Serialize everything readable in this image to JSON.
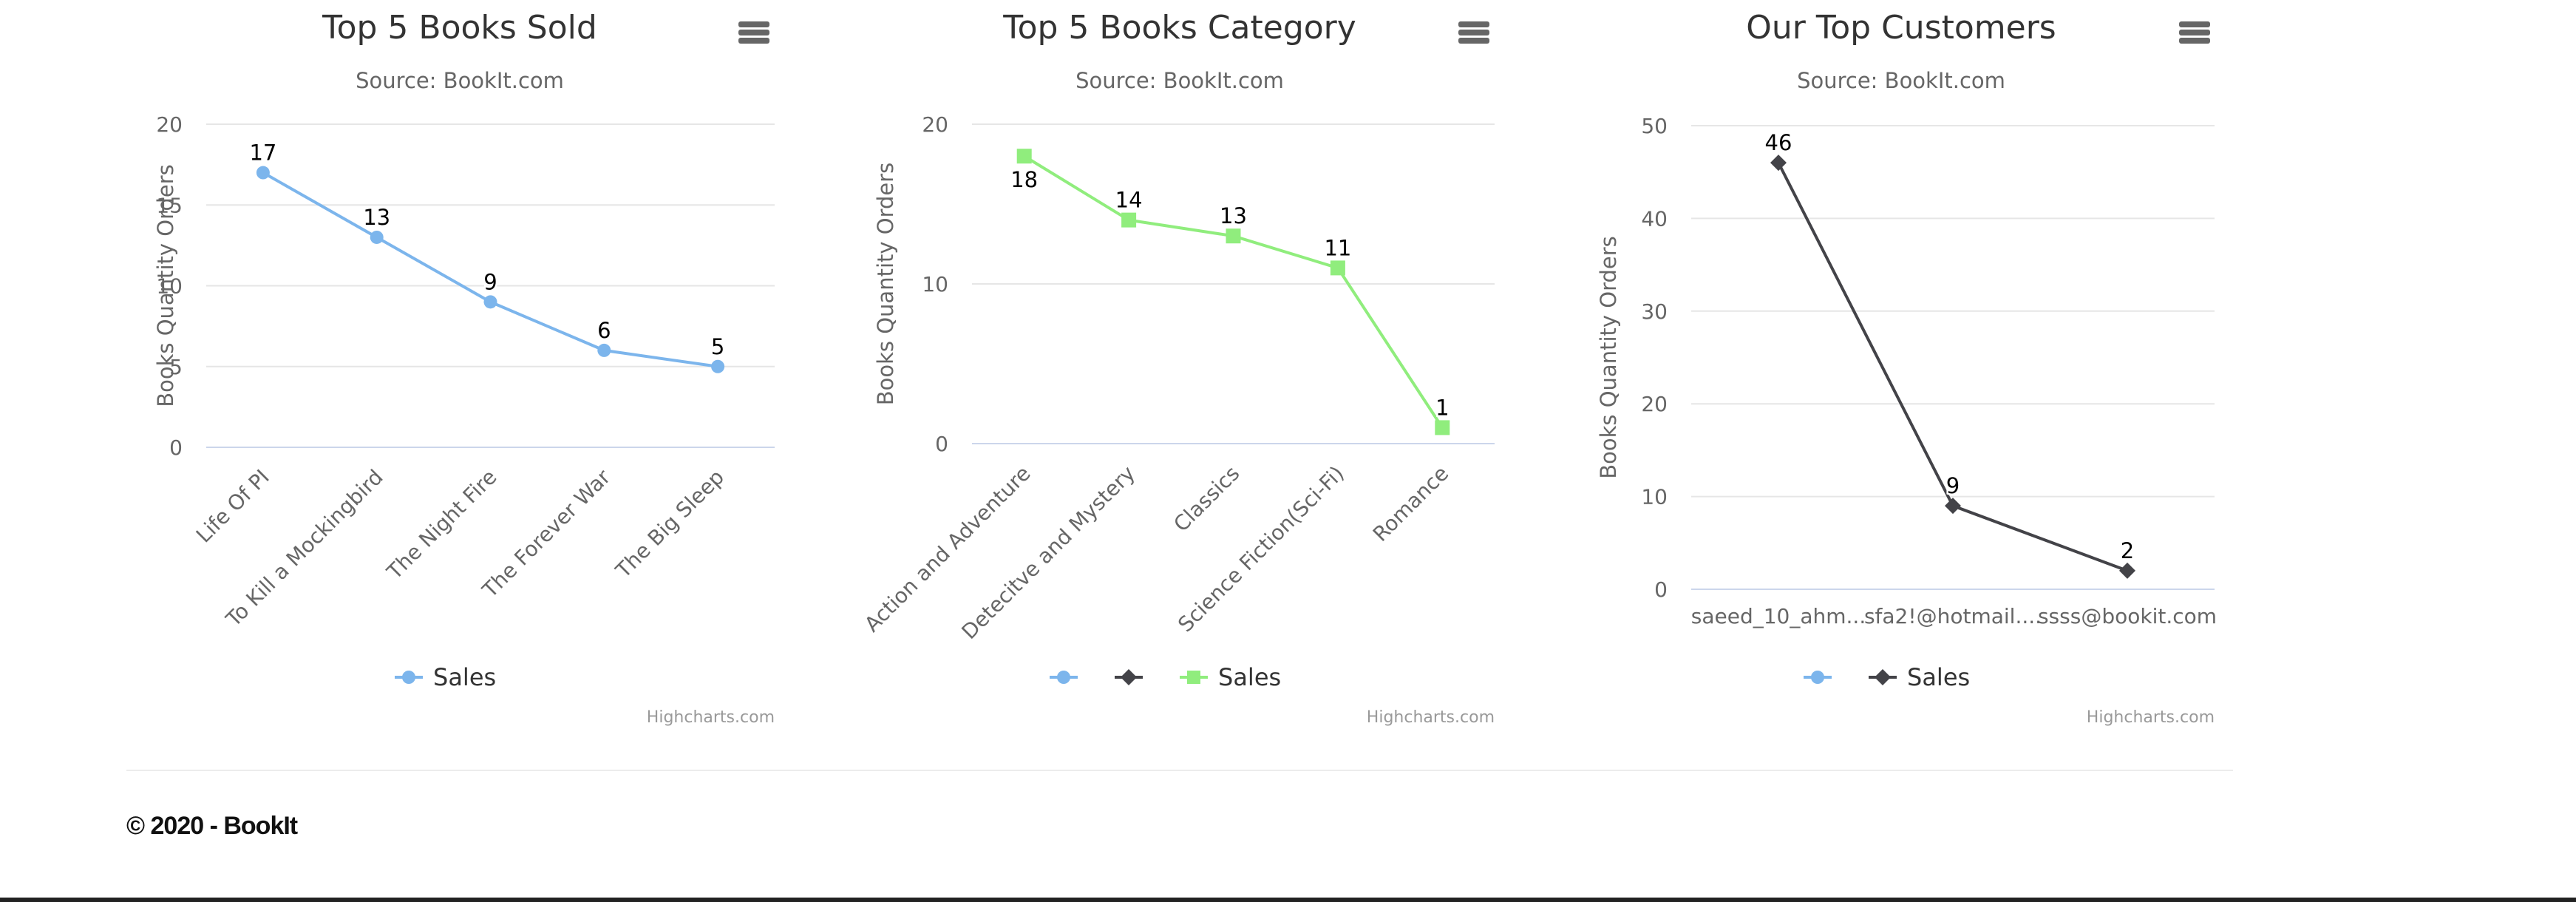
{
  "colors": {
    "blue": "#7cb5ec",
    "black": "#434348",
    "green": "#90ed7d",
    "grid": "#e6e6e6",
    "axis": "#ccd6eb",
    "text": "#333333",
    "subtext": "#666666",
    "credits": "#999999",
    "menu": "#666666"
  },
  "footer": {
    "copyright": "© 2020 - BookIt"
  },
  "chart_data": [
    {
      "type": "line",
      "title": "Top 5 Books Sold",
      "subtitle": "Source: BookIt.com",
      "ylabel": "Books Quantity Orders",
      "xlabel": "",
      "categories": [
        "Life Of PI",
        "To Kill a Mockingbird",
        "The Night Fire",
        "The Forever War",
        "The Big Sleep"
      ],
      "ylim": [
        0,
        20
      ],
      "yticks": [
        0,
        5,
        10,
        15,
        20
      ],
      "xlabel_rotation": -45,
      "series": [
        {
          "name": "Sales",
          "color": "#7cb5ec",
          "marker": "circle",
          "values": [
            17,
            13,
            9,
            6,
            5
          ]
        }
      ],
      "legend": [
        {
          "label": "Sales",
          "marker": "circle",
          "color": "#7cb5ec"
        }
      ],
      "credits": "Highcharts.com",
      "grid": true,
      "legend_position": "bottom-center"
    },
    {
      "type": "line",
      "title": "Top 5 Books Category",
      "subtitle": "Source: BookIt.com",
      "ylabel": "Books Quantity Orders",
      "xlabel": "",
      "categories": [
        "Action and Adventure",
        "Detecitve and Mystery",
        "Classics",
        "Science Fiction(Sci-Fi)",
        "Romance"
      ],
      "ylim": [
        0,
        20
      ],
      "yticks": [
        0,
        10,
        20
      ],
      "xlabel_rotation": -45,
      "series": [
        {
          "name": "Sales",
          "color": "#90ed7d",
          "marker": "square",
          "values": [
            18,
            14,
            13,
            11,
            1
          ]
        }
      ],
      "legend": [
        {
          "label": "",
          "marker": "circle",
          "color": "#7cb5ec"
        },
        {
          "label": "",
          "marker": "diamond",
          "color": "#434348"
        },
        {
          "label": "Sales",
          "marker": "square",
          "color": "#90ed7d"
        }
      ],
      "credits": "Highcharts.com",
      "grid": true,
      "legend_position": "bottom-center"
    },
    {
      "type": "line",
      "title": "Our Top Customers",
      "subtitle": "Source: BookIt.com",
      "ylabel": "Books Quantity Orders",
      "xlabel": "",
      "categories": [
        "saeed_10_ahm...",
        "sfa2!@hotmail....",
        "ssss@bookit.com"
      ],
      "ylim": [
        0,
        50
      ],
      "yticks": [
        0,
        10,
        20,
        30,
        40,
        50
      ],
      "xlabel_rotation": 0,
      "series": [
        {
          "name": "Sales",
          "color": "#434348",
          "marker": "diamond",
          "values": [
            46,
            9,
            2
          ]
        }
      ],
      "legend": [
        {
          "label": "",
          "marker": "circle",
          "color": "#7cb5ec"
        },
        {
          "label": "Sales",
          "marker": "diamond",
          "color": "#434348"
        }
      ],
      "credits": "Highcharts.com",
      "grid": true,
      "legend_position": "bottom-center"
    }
  ]
}
